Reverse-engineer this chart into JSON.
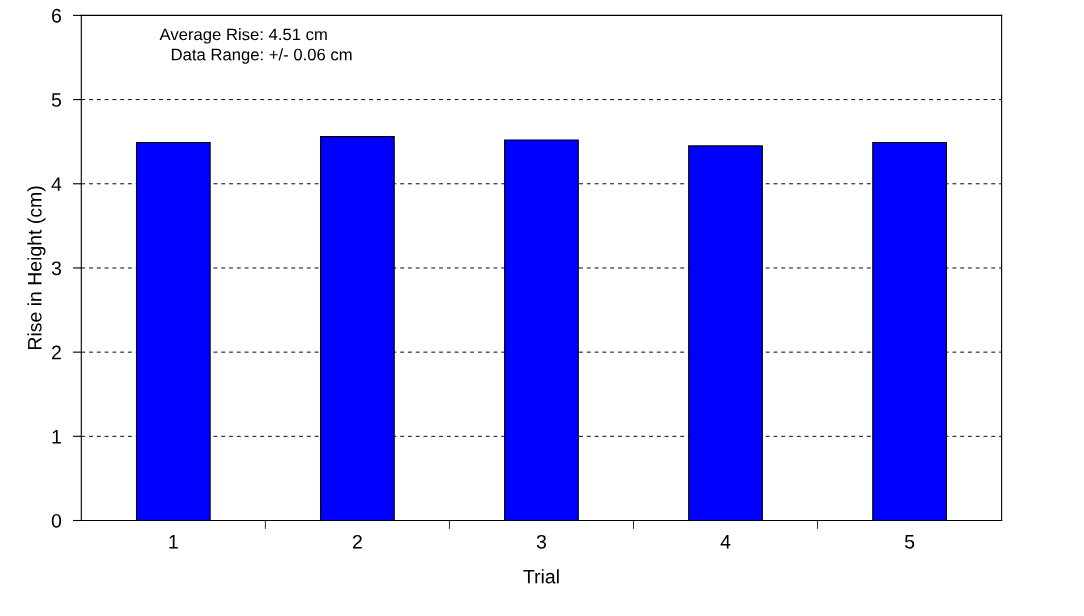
{
  "chart_data": {
    "type": "bar",
    "xlabel": "Trial",
    "ylabel": "Rise in Height (cm)",
    "categories": [
      "1",
      "2",
      "3",
      "4",
      "5"
    ],
    "values": [
      4.49,
      4.56,
      4.52,
      4.45,
      4.49
    ],
    "color": "#0000ff",
    "ylim": [
      0,
      6
    ],
    "yticks": [
      0,
      1,
      2,
      3,
      4,
      5,
      6
    ],
    "grid": "y",
    "line_style": "dashed",
    "annotations": [
      "Average Rise: 4.51 cm",
      "Data Range: +/- 0.06 cm"
    ]
  }
}
